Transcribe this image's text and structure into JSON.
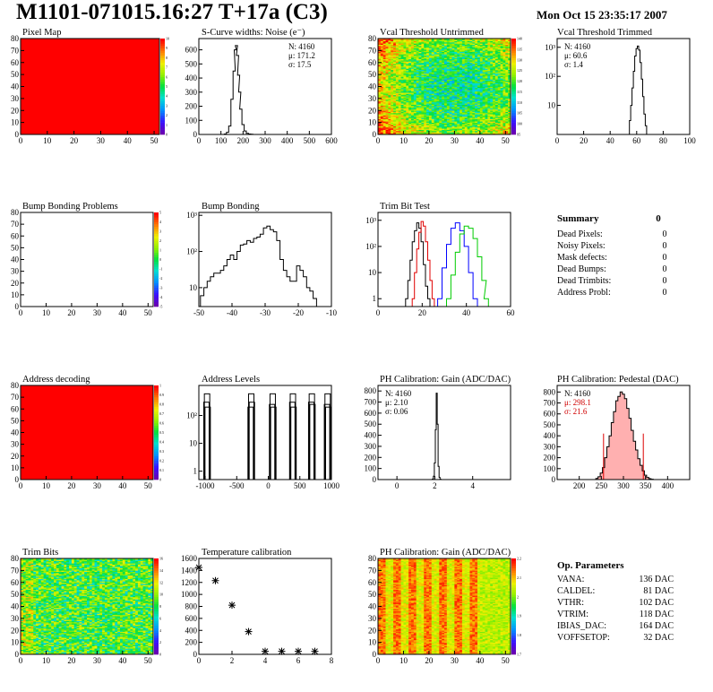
{
  "header": {
    "title": "M1101-071015.16:27 T+17a (C3)",
    "date": "Mon Oct 15 23:35:17 2007"
  },
  "colors": {
    "red": "#ff0000",
    "hist_line": "#000000",
    "trim_red": "#e00000",
    "trim_blue": "#0000ff",
    "trim_green": "#00cc00",
    "ped_fill": "#ffb0b0"
  },
  "chart_data": [
    {
      "id": "pixel-map",
      "type": "heatmap",
      "title": "Pixel Map",
      "xlim": [
        0,
        52
      ],
      "ylim": [
        0,
        80
      ],
      "xticks": [
        "0",
        "10",
        "20",
        "30",
        "40",
        "50"
      ],
      "yticks": [
        "0",
        "10",
        "20",
        "30",
        "40",
        "50",
        "60",
        "70",
        "80"
      ],
      "fill": "uniform-red",
      "zlim": [
        0,
        10
      ],
      "zticks": [
        "0",
        "1",
        "2",
        "3",
        "4",
        "5",
        "6",
        "7",
        "8",
        "9",
        "10"
      ]
    },
    {
      "id": "scurve-widths",
      "type": "bar",
      "title": "S-Curve widths: Noise (e⁻)",
      "xlim": [
        0,
        600
      ],
      "ylim": [
        0,
        680
      ],
      "xticks": [
        "0",
        "100",
        "200",
        "300",
        "400",
        "500",
        "600"
      ],
      "yticks": [
        "0",
        "100",
        "200",
        "300",
        "400",
        "500",
        "600"
      ],
      "x": [
        120,
        130,
        140,
        150,
        160,
        165,
        170,
        175,
        180,
        185,
        190,
        200,
        210,
        220,
        230,
        240,
        250
      ],
      "values": [
        3,
        15,
        60,
        250,
        450,
        600,
        630,
        560,
        420,
        300,
        180,
        70,
        25,
        8,
        3,
        1,
        0
      ],
      "stats": [
        "N: 4160",
        "μ: 171.2",
        "σ: 17.5"
      ]
    },
    {
      "id": "vcal-untrimmed",
      "type": "heatmap",
      "title": "Vcal Threshold Untrimmed",
      "xlim": [
        0,
        52
      ],
      "ylim": [
        0,
        80
      ],
      "xticks": [
        "0",
        "10",
        "20",
        "30",
        "40",
        "50"
      ],
      "yticks": [
        "0",
        "10",
        "20",
        "30",
        "40",
        "50",
        "60",
        "70",
        "80"
      ],
      "fill": "noisy-threshold",
      "zlim": [
        95,
        140
      ],
      "zticks": [
        "95",
        "100",
        "105",
        "110",
        "115",
        "120",
        "125",
        "130",
        "135",
        "140"
      ]
    },
    {
      "id": "vcal-trimmed",
      "type": "bar",
      "title": "Vcal Threshold Trimmed",
      "yscale": "log",
      "xlim": [
        0,
        100
      ],
      "ylim": [
        1,
        2000
      ],
      "xticks": [
        "0",
        "20",
        "40",
        "60",
        "80",
        "100"
      ],
      "yticks": [
        "10",
        "10²",
        "10³"
      ],
      "x": [
        54,
        55,
        56,
        57,
        58,
        59,
        60,
        61,
        62,
        63,
        64,
        65,
        66,
        67,
        68
      ],
      "values": [
        1,
        3,
        10,
        40,
        150,
        500,
        900,
        1100,
        800,
        300,
        80,
        20,
        5,
        2,
        1
      ],
      "stats": [
        "N: 4160",
        "μ: 60.6",
        "σ: 1.4"
      ]
    },
    {
      "id": "bump-problems",
      "type": "heatmap",
      "title": "Bump Bonding Problems",
      "xlim": [
        0,
        52
      ],
      "ylim": [
        0,
        80
      ],
      "xticks": [
        "0",
        "10",
        "20",
        "30",
        "40",
        "50"
      ],
      "yticks": [
        "0",
        "10",
        "20",
        "30",
        "40",
        "50",
        "60",
        "70",
        "80"
      ],
      "fill": "empty",
      "zlim": [
        -5,
        5
      ],
      "zticks": [
        "-5",
        "-4",
        "-3",
        "-2",
        "-1",
        "0",
        "1",
        "2",
        "3",
        "4",
        "5"
      ]
    },
    {
      "id": "bump-bonding",
      "type": "bar",
      "title": "Bump Bonding",
      "yscale": "log",
      "xlim": [
        -50,
        -10
      ],
      "ylim": [
        3,
        1200
      ],
      "xticks": [
        "-50",
        "-40",
        "-30",
        "-20",
        "-10"
      ],
      "yticks": [
        "10",
        "10²",
        "10³"
      ],
      "x": [
        -49,
        -48,
        -47,
        -46,
        -45,
        -44,
        -43,
        -42,
        -41,
        -40,
        -39,
        -38,
        -37,
        -36,
        -35,
        -34,
        -33,
        -32,
        -31,
        -30,
        -29,
        -28,
        -27,
        -26,
        -25,
        -24,
        -23,
        -22,
        -21,
        -20,
        -19,
        -18,
        -17,
        -16,
        -15
      ],
      "values": [
        6,
        10,
        15,
        20,
        25,
        25,
        30,
        40,
        60,
        80,
        60,
        100,
        150,
        160,
        200,
        180,
        230,
        250,
        300,
        450,
        500,
        400,
        350,
        200,
        60,
        30,
        20,
        15,
        15,
        40,
        30,
        20,
        10,
        8,
        5
      ]
    },
    {
      "id": "trim-bit-test",
      "type": "line",
      "title": "Trim Bit Test",
      "yscale": "log",
      "xlim": [
        0,
        60
      ],
      "ylim": [
        0.5,
        2000
      ],
      "xticks": [
        "0",
        "20",
        "40",
        "60"
      ],
      "yticks": [
        "1",
        "10",
        "10²",
        "10³"
      ],
      "series": [
        {
          "color": "#000000",
          "x": [
            13,
            14,
            15,
            16,
            17,
            18,
            19,
            20,
            21,
            22,
            23
          ],
          "values": [
            1,
            5,
            30,
            150,
            400,
            800,
            500,
            150,
            20,
            3,
            1
          ]
        },
        {
          "color": "#e00000",
          "x": [
            16,
            17,
            18,
            19,
            20,
            21,
            22,
            23,
            24,
            25
          ],
          "values": [
            1,
            10,
            80,
            350,
            900,
            600,
            150,
            30,
            5,
            1
          ]
        },
        {
          "color": "#0000ff",
          "x": [
            28,
            30,
            32,
            34,
            36,
            38,
            40,
            42,
            44
          ],
          "values": [
            1,
            15,
            120,
            500,
            800,
            400,
            100,
            10,
            1
          ]
        },
        {
          "color": "#00cc00",
          "x": [
            32,
            34,
            36,
            38,
            40,
            42,
            44,
            46,
            48,
            49
          ],
          "values": [
            1,
            8,
            60,
            300,
            600,
            500,
            200,
            40,
            5,
            1
          ]
        }
      ]
    },
    {
      "id": "address-decoding",
      "type": "heatmap",
      "title": "Address decoding",
      "xlim": [
        0,
        52
      ],
      "ylim": [
        0,
        80
      ],
      "xticks": [
        "0",
        "10",
        "20",
        "30",
        "40",
        "50"
      ],
      "yticks": [
        "0",
        "10",
        "20",
        "30",
        "40",
        "50",
        "60",
        "70",
        "80"
      ],
      "fill": "uniform-red",
      "zlim": [
        0,
        1
      ],
      "zticks": [
        "0",
        "0.1",
        "0.2",
        "0.3",
        "0.4",
        "0.5",
        "0.6",
        "0.7",
        "0.8",
        "0.9",
        "1"
      ]
    },
    {
      "id": "address-levels",
      "type": "bar",
      "title": "Address Levels",
      "yscale": "log",
      "xlim": [
        -1100,
        1000
      ],
      "ylim": [
        0.5,
        1200
      ],
      "xticks": [
        "-1000",
        "-500",
        "0",
        "500",
        "1000"
      ],
      "yticks": [
        "1",
        "10",
        "10²"
      ],
      "x": [
        -980,
        -970,
        -960,
        -280,
        -270,
        -260,
        60,
        70,
        80,
        380,
        390,
        400,
        680,
        690,
        700,
        930,
        940,
        950
      ],
      "values": [
        300,
        600,
        200,
        200,
        600,
        300,
        250,
        600,
        200,
        300,
        600,
        200,
        300,
        600,
        250,
        250,
        600,
        200
      ]
    },
    {
      "id": "ph-gain",
      "type": "bar",
      "title": "PH Calibration: Gain (ADC/DAC)",
      "xlim": [
        -1,
        6
      ],
      "ylim": [
        0,
        850
      ],
      "xticks": [
        "0",
        "2",
        "4"
      ],
      "yticks": [
        "0",
        "100",
        "200",
        "300",
        "400",
        "500",
        "600",
        "700",
        "800"
      ],
      "x": [
        1.9,
        1.95,
        2.0,
        2.05,
        2.1,
        2.15,
        2.2,
        2.25,
        2.3
      ],
      "values": [
        5,
        30,
        150,
        450,
        780,
        500,
        120,
        20,
        3
      ],
      "stats": [
        "N: 4160",
        "μ: 2.10",
        "σ: 0.06"
      ]
    },
    {
      "id": "ph-pedestal",
      "type": "bar",
      "title": "PH Calibration: Pedestal (DAC)",
      "xlim": [
        150,
        450
      ],
      "ylim": [
        0,
        860
      ],
      "xticks": [
        "200",
        "250",
        "300",
        "350",
        "400"
      ],
      "yticks": [
        "0",
        "100",
        "200",
        "300",
        "400",
        "500",
        "600",
        "700",
        "800"
      ],
      "x": [
        240,
        245,
        250,
        255,
        260,
        265,
        270,
        275,
        280,
        285,
        290,
        295,
        300,
        305,
        310,
        315,
        320,
        325,
        330,
        335,
        340,
        345,
        350,
        355,
        360,
        365
      ],
      "values": [
        10,
        25,
        60,
        110,
        200,
        300,
        400,
        520,
        620,
        720,
        760,
        800,
        780,
        740,
        650,
        560,
        450,
        350,
        270,
        190,
        130,
        80,
        40,
        20,
        8,
        3
      ],
      "stats": [
        "N: 4160",
        "μ: 298.1",
        "σ: 21.6"
      ],
      "fit_range": [
        255,
        345
      ]
    },
    {
      "id": "trim-bits",
      "type": "heatmap",
      "title": "Trim Bits",
      "xlim": [
        0,
        52
      ],
      "ylim": [
        0,
        80
      ],
      "xticks": [
        "0",
        "10",
        "20",
        "30",
        "40",
        "50"
      ],
      "yticks": [
        "0",
        "10",
        "20",
        "30",
        "40",
        "50",
        "60",
        "70",
        "80"
      ],
      "fill": "noisy-trim",
      "zlim": [
        0,
        16
      ],
      "zticks": [
        "0",
        "2",
        "4",
        "6",
        "8",
        "10",
        "12",
        "14",
        "16"
      ]
    },
    {
      "id": "temp-calibration",
      "type": "scatter",
      "title": "Temperature calibration",
      "xlim": [
        0,
        8
      ],
      "ylim": [
        0,
        1600
      ],
      "xticks": [
        "0",
        "2",
        "4",
        "6",
        "8"
      ],
      "yticks": [
        "0",
        "200",
        "400",
        "600",
        "800",
        "1000",
        "1200",
        "1400",
        "1600"
      ],
      "x": [
        0,
        1,
        2,
        3,
        4,
        5,
        6,
        7
      ],
      "values": [
        1450,
        1230,
        820,
        380,
        50,
        50,
        50,
        50
      ]
    },
    {
      "id": "ph-gain-map",
      "type": "heatmap",
      "title": "PH Calibration: Gain (ADC/DAC)",
      "xlim": [
        0,
        52
      ],
      "ylim": [
        0,
        80
      ],
      "xticks": [
        "0",
        "10",
        "20",
        "30",
        "40",
        "50"
      ],
      "yticks": [
        "0",
        "10",
        "20",
        "30",
        "40",
        "50",
        "60",
        "70",
        "80"
      ],
      "fill": "gain-columns",
      "zlim": [
        1.7,
        2.2
      ],
      "zticks": [
        "1.7",
        "1.8",
        "1.9",
        "2",
        "2.1",
        "2.2"
      ]
    }
  ],
  "summary": {
    "title": "Summary",
    "value": "0",
    "rows": [
      {
        "label": "Dead Pixels:",
        "value": "0"
      },
      {
        "label": "Noisy Pixels:",
        "value": "0"
      },
      {
        "label": "Mask defects:",
        "value": "0"
      },
      {
        "label": "Dead Bumps:",
        "value": "0"
      },
      {
        "label": "Dead Trimbits:",
        "value": "0"
      },
      {
        "label": "Address Probl:",
        "value": "0"
      }
    ]
  },
  "op_params": {
    "title": "Op. Parameters",
    "rows": [
      {
        "label": "VANA:",
        "value": "136 DAC"
      },
      {
        "label": "CALDEL:",
        "value": "81 DAC"
      },
      {
        "label": "VTHR:",
        "value": "102 DAC"
      },
      {
        "label": "VTRIM:",
        "value": "118 DAC"
      },
      {
        "label": "IBIAS_DAC:",
        "value": "164 DAC"
      },
      {
        "label": "VOFFSETOP:",
        "value": "32 DAC"
      }
    ]
  }
}
